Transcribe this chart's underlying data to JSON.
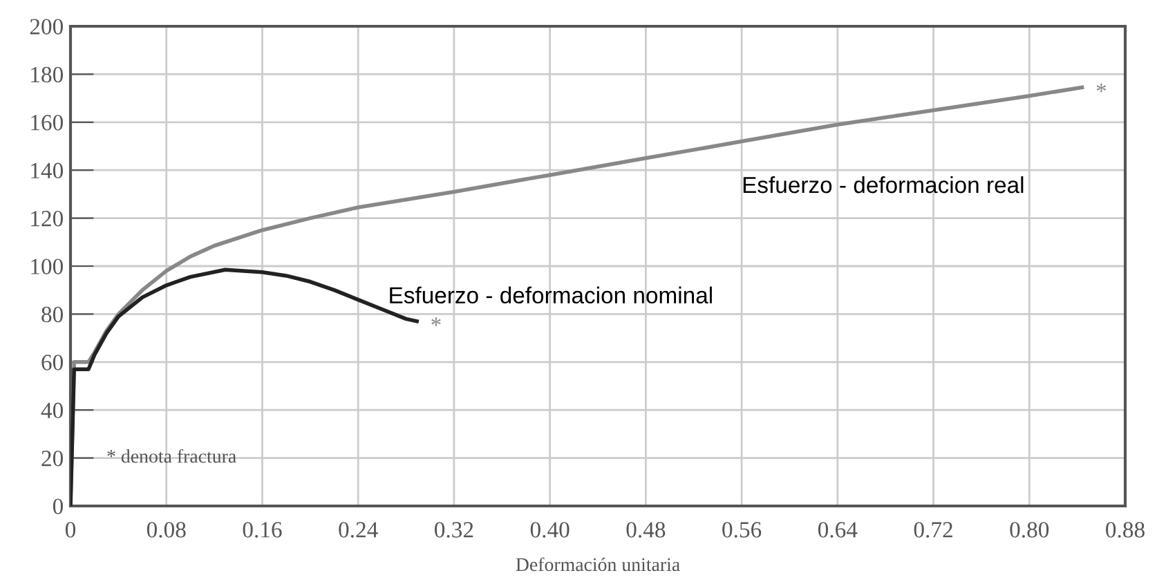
{
  "chart_data": {
    "type": "line",
    "xlabel": "Deformación unitaria",
    "xlim": [
      0,
      0.88
    ],
    "ylim": [
      0,
      200
    ],
    "xticks": [
      {
        "value": 0,
        "label": "0"
      },
      0.08,
      0.16,
      0.24,
      0.32,
      {
        "value": 0.4,
        "label": "0.40"
      },
      0.48,
      0.56,
      0.64,
      0.72,
      {
        "value": 0.8,
        "label": "0.80"
      },
      0.88
    ],
    "yticks": [
      0,
      20,
      40,
      60,
      80,
      100,
      120,
      140,
      160,
      180,
      200
    ],
    "grid": true,
    "marker": "none",
    "line_style": "solid",
    "series": [
      {
        "name": "Esfuerzo - deformacion real",
        "color": "#888888",
        "x": [
          0,
          0.003,
          0.015,
          0.02,
          0.03,
          0.04,
          0.06,
          0.08,
          0.1,
          0.12,
          0.16,
          0.2,
          0.24,
          0.32,
          0.4,
          0.48,
          0.56,
          0.64,
          0.72,
          0.8,
          0.844
        ],
        "values": [
          0,
          60,
          60,
          64,
          73,
          80,
          90,
          98,
          104,
          108.5,
          115,
          120,
          124.5,
          131,
          138,
          145,
          152,
          159,
          165,
          171,
          174.5
        ]
      },
      {
        "name": "Esfuerzo - deformacion nominal",
        "color": "#222222",
        "x": [
          0,
          0.003,
          0.015,
          0.02,
          0.03,
          0.04,
          0.06,
          0.08,
          0.1,
          0.129,
          0.16,
          0.18,
          0.2,
          0.22,
          0.24,
          0.26,
          0.28,
          0.289
        ],
        "values": [
          0,
          57,
          57,
          63,
          72,
          79,
          87,
          92,
          95.5,
          98.5,
          97.5,
          96,
          93.5,
          90,
          86,
          82,
          78,
          77
        ]
      }
    ],
    "annotations": [
      "*",
      "*",
      "* denota fractura"
    ]
  }
}
